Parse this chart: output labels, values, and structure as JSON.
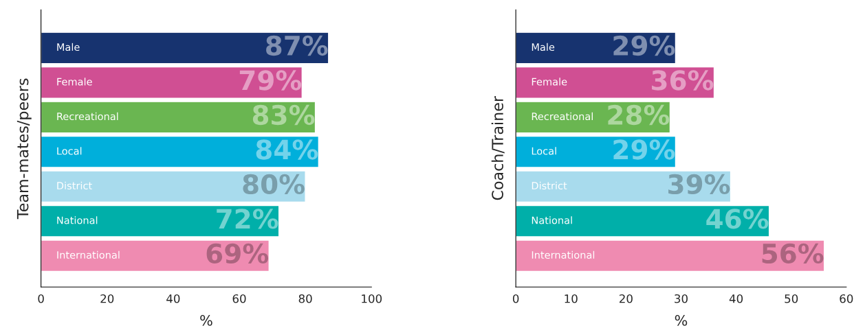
{
  "chart_data": [
    {
      "type": "bar",
      "orientation": "horizontal",
      "categories": [
        "Male",
        "Female",
        "Recreational",
        "Local",
        "District",
        "National",
        "International"
      ],
      "values": [
        87,
        79,
        83,
        84,
        80,
        72,
        69
      ],
      "colors": [
        "#17336f",
        "#d04f93",
        "#6ab651",
        "#00afdb",
        "#a8dbed",
        "#00afa9",
        "#ef8bb1"
      ],
      "value_labels": [
        "87%",
        "79%",
        "83%",
        "84%",
        "80%",
        "72%",
        "69%"
      ],
      "ylabel": "Team-mates/peers",
      "xlabel": "%",
      "xlim": [
        0,
        100
      ],
      "xticks": [
        0,
        20,
        40,
        60,
        80,
        100
      ],
      "grid": false,
      "legend": false
    },
    {
      "type": "bar",
      "orientation": "horizontal",
      "categories": [
        "Male",
        "Female",
        "Recreational",
        "Local",
        "District",
        "National",
        "International"
      ],
      "values": [
        29,
        36,
        28,
        29,
        39,
        46,
        56
      ],
      "colors": [
        "#17336f",
        "#d04f93",
        "#6ab651",
        "#00afdb",
        "#a8dbed",
        "#00afa9",
        "#ef8bb1"
      ],
      "value_labels": [
        "29%",
        "36%",
        "28%",
        "29%",
        "39%",
        "46%",
        "56%"
      ],
      "ylabel": "Coach/Trainer",
      "xlabel": "%",
      "xlim": [
        0,
        60
      ],
      "xticks": [
        0,
        10,
        20,
        30,
        40,
        50,
        60
      ],
      "grid": false,
      "legend": false
    }
  ]
}
